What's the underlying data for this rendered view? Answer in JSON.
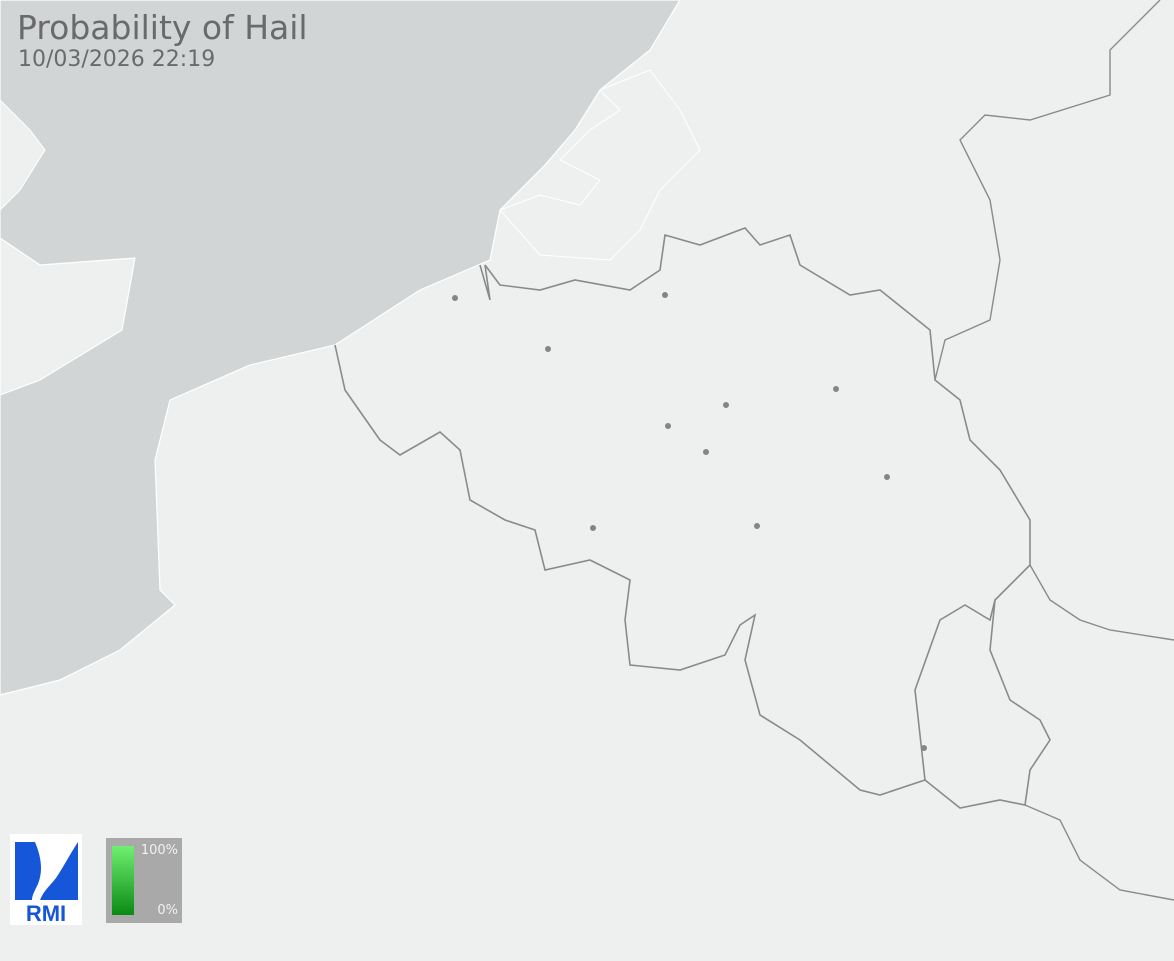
{
  "header": {
    "title": "Probability of Hail",
    "timestamp": "10/03/2026 22:19"
  },
  "logo": {
    "text": "RMI",
    "color": "#1656d8"
  },
  "legend": {
    "max_label": "100%",
    "min_label": "0%",
    "color_top": "#70f070",
    "color_bottom": "#0a8a14"
  },
  "map": {
    "sea_color": "#d2d5d6",
    "land_color": "#eef0ef",
    "border_color": "#8a8a8a",
    "city_color": "#858585"
  }
}
